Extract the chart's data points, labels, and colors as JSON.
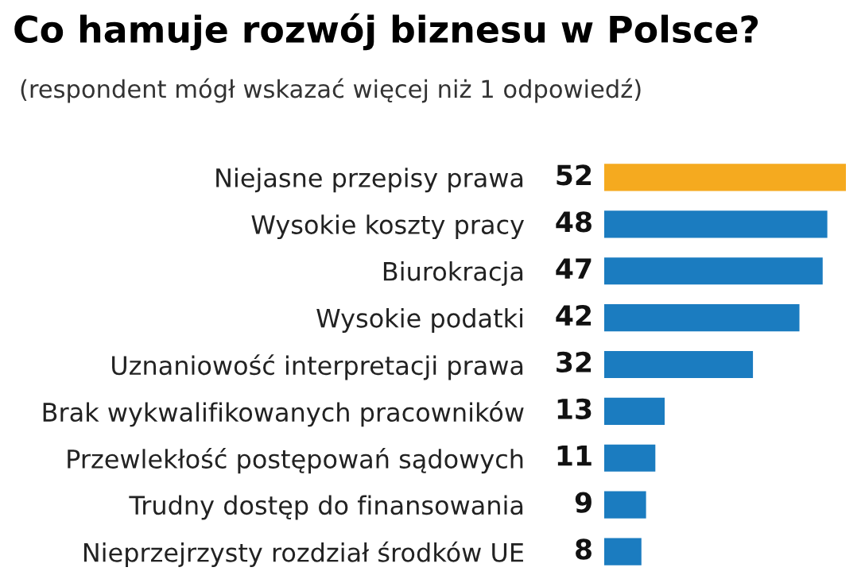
{
  "chart_data": {
    "type": "bar",
    "orientation": "horizontal",
    "title": "Co hamuje rozwój biznesu w Polsce?",
    "subtitle": "(respondent mógł wskazać więcej niż 1 odpowiedź)",
    "categories": [
      "Niejasne przepisy prawa",
      "Wysokie koszty pracy",
      "Biurokracja",
      "Wysokie podatki",
      "Uznaniowość interpretacji prawa",
      "Brak wykwalifikowanych pracowników",
      "Przewlekłość postępowań sądowych",
      "Trudny dostęp do finansowania",
      "Nieprzejrzysty rozdział środków UE"
    ],
    "values": [
      52,
      48,
      47,
      42,
      32,
      13,
      11,
      9,
      8
    ],
    "colors": [
      "#f5aa1f",
      "#1b7cc0",
      "#1b7cc0",
      "#1b7cc0",
      "#1b7cc0",
      "#1b7cc0",
      "#1b7cc0",
      "#1b7cc0",
      "#1b7cc0"
    ],
    "data_labels": true,
    "grid": false,
    "legend": false
  }
}
